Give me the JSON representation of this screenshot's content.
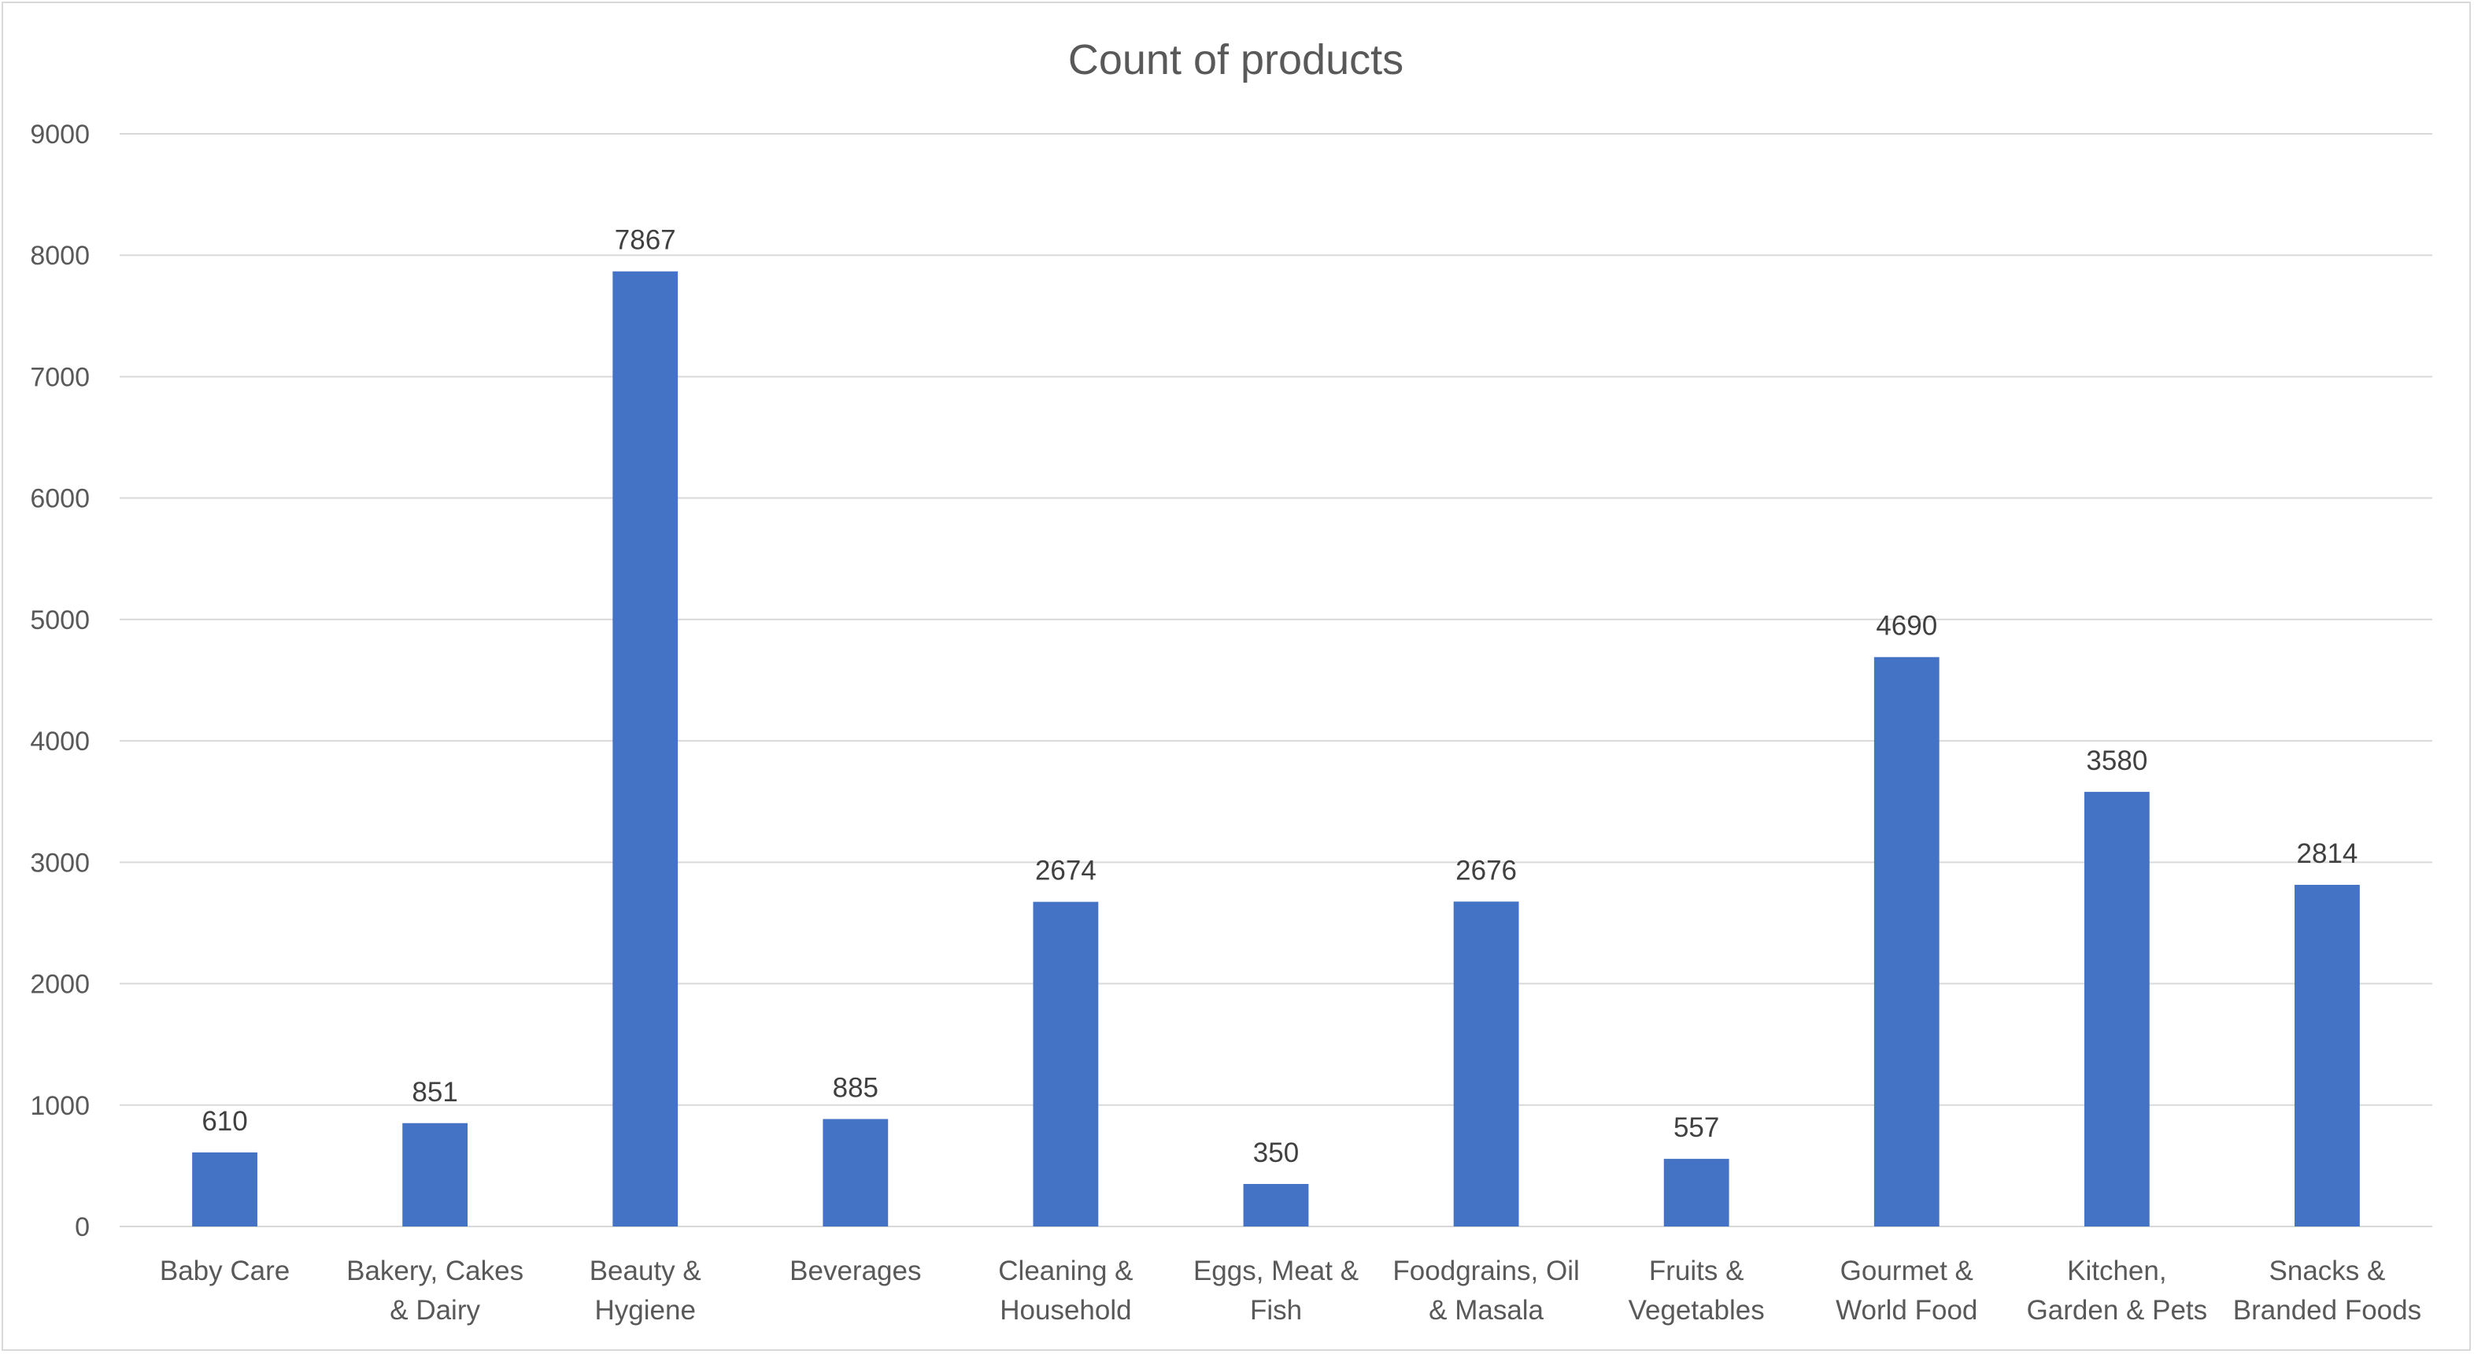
{
  "chart_data": {
    "type": "bar",
    "title": "Count of products",
    "xlabel": "",
    "ylabel": "",
    "categories": [
      [
        "Baby Care"
      ],
      [
        "Bakery, Cakes",
        "& Dairy"
      ],
      [
        "Beauty &",
        "Hygiene"
      ],
      [
        "Beverages"
      ],
      [
        "Cleaning &",
        "Household"
      ],
      [
        "Eggs, Meat &",
        "Fish"
      ],
      [
        "Foodgrains, Oil",
        "& Masala"
      ],
      [
        "Fruits &",
        "Vegetables"
      ],
      [
        "Gourmet &",
        "World Food"
      ],
      [
        "Kitchen,",
        "Garden & Pets"
      ],
      [
        "Snacks &",
        "Branded Foods"
      ]
    ],
    "values": [
      610,
      851,
      7867,
      885,
      2674,
      350,
      2676,
      557,
      4690,
      3580,
      2814
    ],
    "data_labels": [
      "610",
      "851",
      "7867",
      "885",
      "2674",
      "350",
      "2676",
      "557",
      "4690",
      "3580",
      "2814"
    ],
    "ylim": [
      0,
      9000
    ],
    "yticks": [
      "0",
      "1000",
      "2000",
      "3000",
      "4000",
      "5000",
      "6000",
      "7000",
      "8000",
      "9000"
    ],
    "grid": true,
    "legend": "none",
    "bar_color": "#4472C4"
  }
}
